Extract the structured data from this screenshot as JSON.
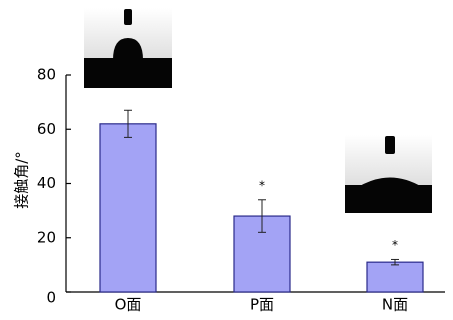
{
  "chart_data": {
    "type": "bar",
    "y_label": "接触角/°",
    "categories": [
      "O面",
      "P面",
      "N面"
    ],
    "values": [
      62,
      28,
      11
    ],
    "errors": [
      5,
      6,
      1
    ],
    "significance": [
      null,
      "*",
      "*"
    ],
    "color": "#a3a3f5",
    "edge_color": "#2a2a8a",
    "ylim": [
      0,
      80
    ],
    "yticks": [
      0,
      20,
      40,
      60,
      80
    ],
    "grid": false
  }
}
